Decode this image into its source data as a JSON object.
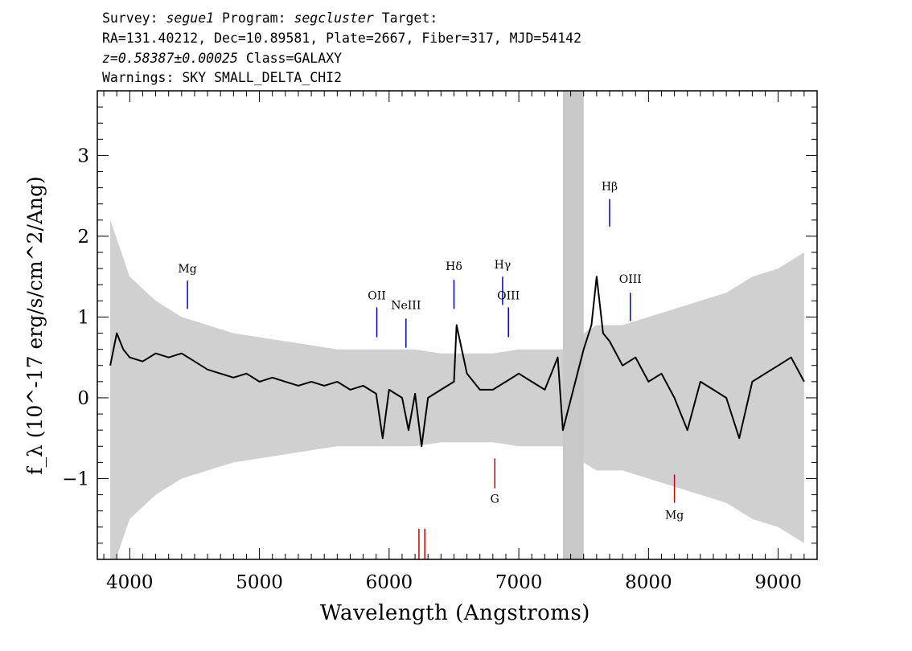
{
  "header": {
    "line1": {
      "survey_label": "Survey: ",
      "survey": "segue1",
      "program_label": " Program: ",
      "program": "segcluster",
      "target_label": " Target:"
    },
    "line2": "RA=131.40212, Dec=10.89581, Plate=2667, Fiber=317, MJD=54142",
    "line3": {
      "redshift": "z=0.58387±0.00025",
      "class": " Class=GALAXY"
    },
    "line4": "Warnings: SKY SMALL_DELTA_CHI2"
  },
  "chart_data": {
    "type": "line",
    "xlabel": "Wavelength (Angstroms)",
    "ylabel": "f_λ (10^-17 erg/s/cm^2/Ang)",
    "xlim": [
      3750,
      9300
    ],
    "ylim": [
      -2.0,
      3.8
    ],
    "xticks": [
      4000,
      5000,
      6000,
      7000,
      8000,
      9000
    ],
    "yticks": [
      -1,
      0,
      1,
      2,
      3
    ],
    "masked_region": [
      7340,
      7500
    ],
    "colors": {
      "spectrum": "#000000",
      "error": "#c8c8c8",
      "mask": "#c8c8c8",
      "emission": "#0000cc",
      "absorption": "#cc0000"
    },
    "series": [
      {
        "role": "flux",
        "x": [
          3850,
          3900,
          3950,
          4000,
          4100,
          4200,
          4300,
          4400,
          4500,
          4600,
          4700,
          4800,
          4900,
          5000,
          5100,
          5200,
          5300,
          5400,
          5500,
          5600,
          5700,
          5800,
          5900,
          5950,
          6000,
          6100,
          6150,
          6200,
          6250,
          6300,
          6400,
          6500,
          6520,
          6600,
          6700,
          6800,
          6900,
          7000,
          7100,
          7200,
          7300,
          7340,
          7500,
          7560,
          7600,
          7650,
          7700,
          7800,
          7900,
          8000,
          8100,
          8200,
          8300,
          8400,
          8500,
          8600,
          8700,
          8800,
          8900,
          9000,
          9100,
          9200
        ],
        "y": [
          0.4,
          0.8,
          0.6,
          0.5,
          0.45,
          0.55,
          0.5,
          0.55,
          0.45,
          0.35,
          0.3,
          0.25,
          0.3,
          0.2,
          0.25,
          0.2,
          0.15,
          0.2,
          0.15,
          0.2,
          0.1,
          0.15,
          0.05,
          -0.5,
          0.1,
          0.0,
          -0.4,
          0.05,
          -0.6,
          0.0,
          0.1,
          0.2,
          0.9,
          0.3,
          0.1,
          0.1,
          0.2,
          0.3,
          0.2,
          0.1,
          0.5,
          -0.4,
          0.6,
          0.9,
          1.5,
          0.8,
          0.7,
          0.4,
          0.5,
          0.2,
          0.3,
          0.0,
          -0.4,
          0.2,
          0.1,
          0.0,
          -0.5,
          0.2,
          0.3,
          0.4,
          0.5,
          0.2
        ]
      },
      {
        "role": "error",
        "x": [
          3850,
          4000,
          4200,
          4400,
          4600,
          4800,
          5000,
          5200,
          5400,
          5600,
          5800,
          6000,
          6200,
          6400,
          6600,
          6800,
          7000,
          7200,
          7340,
          7500,
          7600,
          7800,
          8000,
          8200,
          8400,
          8600,
          8800,
          9000,
          9200
        ],
        "y": [
          2.2,
          1.5,
          1.2,
          1.0,
          0.9,
          0.8,
          0.75,
          0.7,
          0.65,
          0.6,
          0.6,
          0.6,
          0.6,
          0.55,
          0.55,
          0.55,
          0.6,
          0.6,
          0.6,
          0.8,
          0.9,
          0.9,
          1.0,
          1.1,
          1.2,
          1.3,
          1.5,
          1.6,
          1.8
        ]
      }
    ],
    "line_labels": [
      {
        "label": "Mg",
        "x": 4445,
        "y_text": 1.55,
        "y0": 1.1,
        "y1": 1.45,
        "kind": "emission"
      },
      {
        "label": "OII",
        "x": 5905,
        "y_text": 1.22,
        "y0": 0.75,
        "y1": 1.12,
        "kind": "emission"
      },
      {
        "label": "NeIII",
        "x": 6130,
        "y_text": 1.1,
        "y0": 0.62,
        "y1": 0.98,
        "kind": "emission"
      },
      {
        "label": "Hδ",
        "x": 6500,
        "y_text": 1.58,
        "y0": 1.1,
        "y1": 1.46,
        "kind": "emission"
      },
      {
        "label": "Hγ",
        "x": 6875,
        "y_text": 1.6,
        "y0": 1.15,
        "y1": 1.5,
        "kind": "emission"
      },
      {
        "label": "OIII",
        "x": 6920,
        "y_text": 1.22,
        "y0": 0.75,
        "y1": 1.12,
        "kind": "emission"
      },
      {
        "label": "Hβ",
        "x": 7700,
        "y_text": 2.57,
        "y0": 2.12,
        "y1": 2.46,
        "kind": "emission"
      },
      {
        "label": "OIII",
        "x": 7860,
        "y_text": 1.42,
        "y0": 0.95,
        "y1": 1.3,
        "kind": "emission"
      },
      {
        "label": "G",
        "x": 6815,
        "y_text": -1.3,
        "y0": -1.12,
        "y1": -0.75,
        "kind": "absorption"
      },
      {
        "label": "Mg",
        "x": 8200,
        "y_text": -1.5,
        "y0": -1.3,
        "y1": -0.95,
        "kind": "absorption"
      },
      {
        "label": "",
        "x": 6230,
        "y_text": null,
        "y0": -2.0,
        "y1": -1.62,
        "kind": "absorption"
      },
      {
        "label": "",
        "x": 6275,
        "y_text": null,
        "y0": -2.0,
        "y1": -1.62,
        "kind": "absorption"
      }
    ]
  }
}
